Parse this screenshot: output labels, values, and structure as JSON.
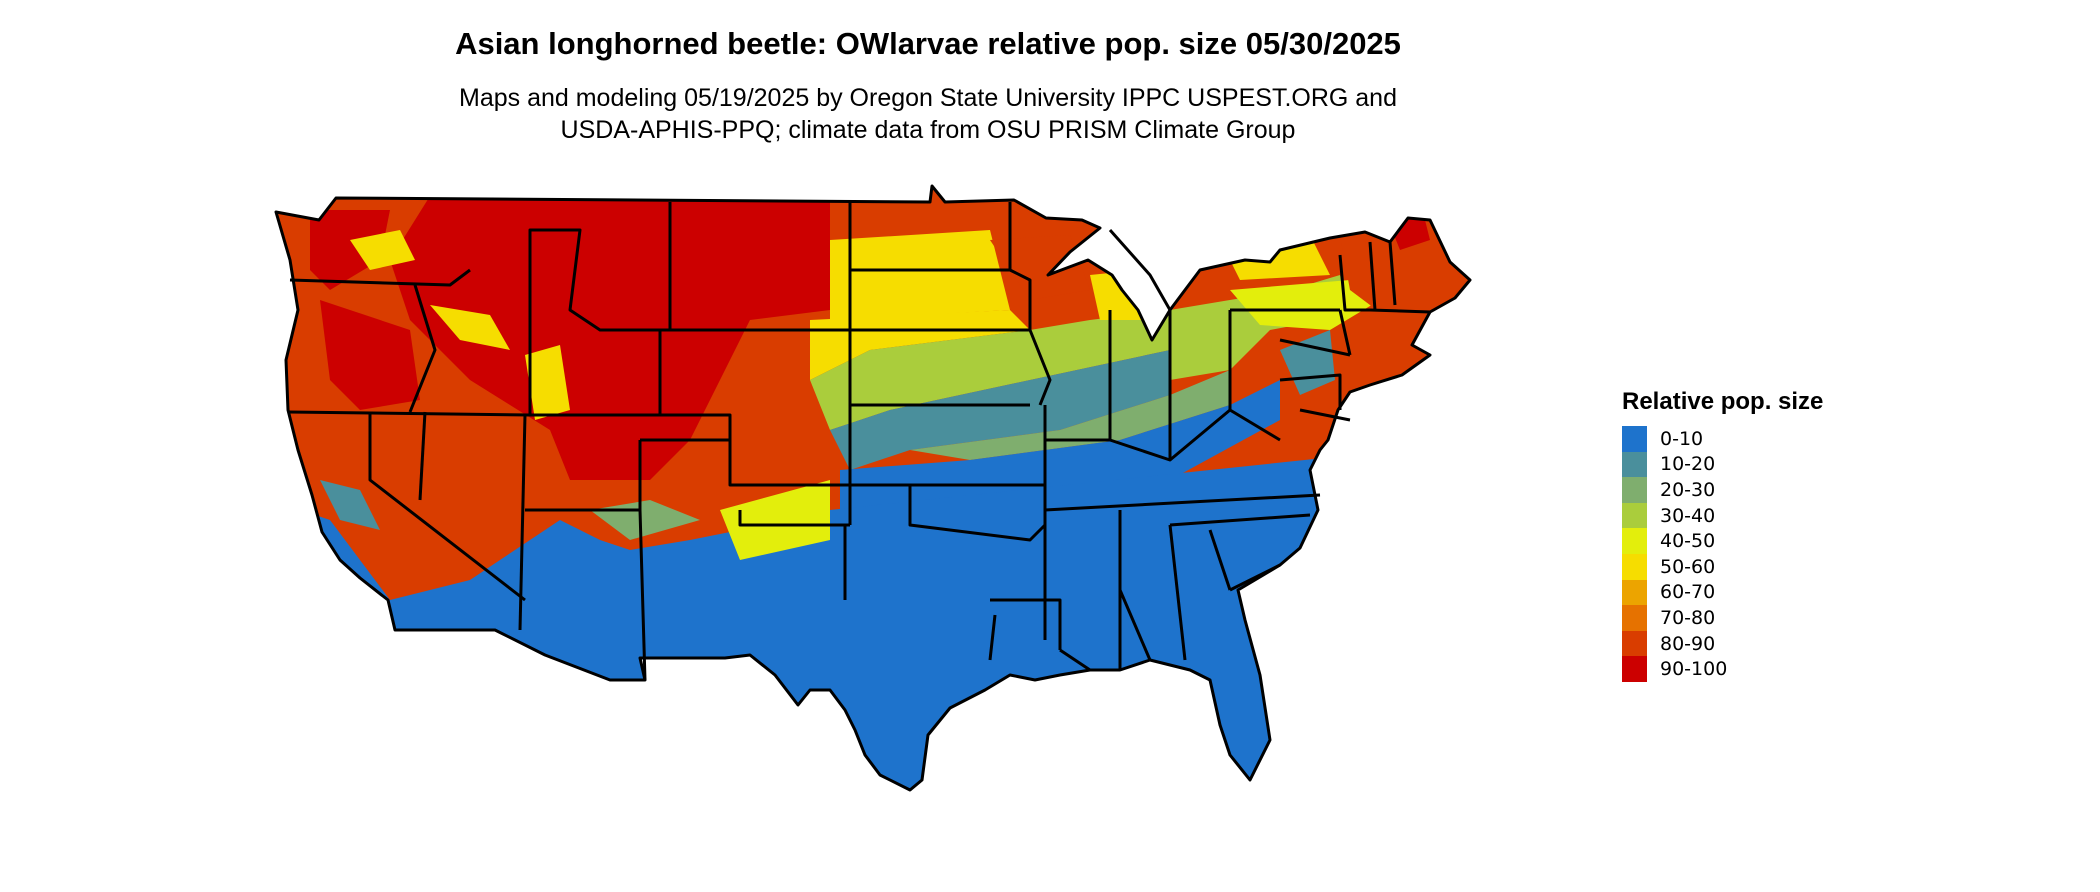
{
  "title": "Asian longhorned beetle: OWlarvae relative pop. size 05/30/2025",
  "subtitle_line1": "Maps and modeling 05/19/2025 by Oregon State University IPPC USPEST.ORG and",
  "subtitle_line2": "USDA-APHIS-PPQ; climate data from OSU PRISM Climate Group",
  "legend": {
    "title": "Relative pop. size",
    "items": [
      {
        "label": "0-10",
        "color": "#1e73cc"
      },
      {
        "label": "10-20",
        "color": "#4a8f9c"
      },
      {
        "label": "20-30",
        "color": "#7fae6e"
      },
      {
        "label": "30-40",
        "color": "#aacd3c"
      },
      {
        "label": "40-50",
        "color": "#e3ee0c"
      },
      {
        "label": "50-60",
        "color": "#f6dd00"
      },
      {
        "label": "60-70",
        "color": "#eca400"
      },
      {
        "label": "70-80",
        "color": "#e67200"
      },
      {
        "label": "80-90",
        "color": "#d93d00"
      },
      {
        "label": "90-100",
        "color": "#cc0000"
      }
    ]
  }
}
